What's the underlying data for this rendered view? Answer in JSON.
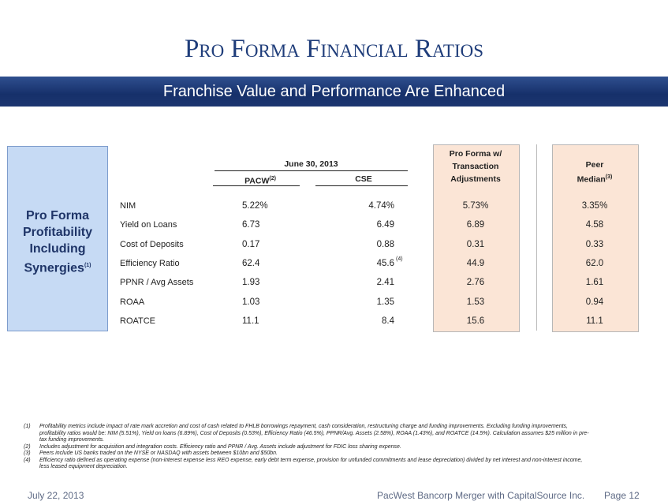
{
  "header": {
    "title": "Pro Forma Financial Ratios",
    "subtitle": "Franchise Value and Performance Are Enhanced"
  },
  "side_label": {
    "text": "Pro Forma Profitability Including Synergies",
    "note": "(1)"
  },
  "table": {
    "group_header": "June 30, 2013",
    "columns": [
      {
        "lines": [
          "PACW"
        ],
        "note": "(2)"
      },
      {
        "lines": [
          "CSE"
        ]
      },
      {
        "lines": [
          "Pro Forma w/",
          "Transaction",
          "Adjustments"
        ]
      },
      {
        "lines": [
          "Peer",
          "Median"
        ],
        "note": "(3)"
      }
    ],
    "rows": [
      {
        "label": "NIM",
        "values": [
          "5.22%",
          "4.74%",
          "5.73%",
          "3.35%"
        ]
      },
      {
        "label": "Yield on Loans",
        "values": [
          "6.73",
          "6.49",
          "6.89",
          "4.58"
        ]
      },
      {
        "label": "Cost of Deposits",
        "values": [
          "0.17",
          "0.88",
          "0.31",
          "0.33"
        ]
      },
      {
        "label": "Efficiency Ratio",
        "values": [
          "62.4",
          {
            "text": "45.6",
            "note": "(4)"
          },
          "44.9",
          "62.0"
        ]
      },
      {
        "label": "PPNR / Avg Assets",
        "values": [
          "1.93",
          "2.41",
          "2.76",
          "1.61"
        ]
      },
      {
        "label": "ROAA",
        "values": [
          "1.03",
          "1.35",
          "1.53",
          "0.94"
        ]
      },
      {
        "label": "ROATCE",
        "values": [
          "11.1",
          "8.4",
          "15.6",
          "11.1"
        ]
      }
    ]
  },
  "footnotes": [
    {
      "num": "(1)",
      "text": "Profitability metrics include impact of rate mark accretion and cost of cash related to FHLB borrowings repayment, cash consideration, restructuring charge and funding improvements. Excluding funding improvements, profitability ratios would be: NIM (5.51%), Yield on loans (6.89%), Cost of Deposits (0.53%), Efficiency Ratio (46.5%), PPNR/Avg. Assets (2.58%), ROAA (1.43%), and ROATCE (14.5%). Calculation assumes $25 million in pre-tax funding improvements."
    },
    {
      "num": "(2)",
      "text": "Includes adjustment for acquisition and integration costs. Efficiency ratio and PPNR / Avg. Assets include adjustment for FDIC loss sharing expense."
    },
    {
      "num": "(3)",
      "text": "Peers include US banks traded on the NYSE or NASDAQ with assets between $10bn and $50bn."
    },
    {
      "num": "(4)",
      "text": "Efficiency ratio defined as operating expense (non-interest expense less REO expense, early debt term expense, provision for unfunded commitments and lease depreciation) divided by net interest and non-interest income, less leased equipment depreciation."
    }
  ],
  "footer": {
    "date": "July 22, 2013",
    "deal": "PacWest Bancorp Merger with CapitalSource Inc.",
    "page": "Page 12"
  }
}
